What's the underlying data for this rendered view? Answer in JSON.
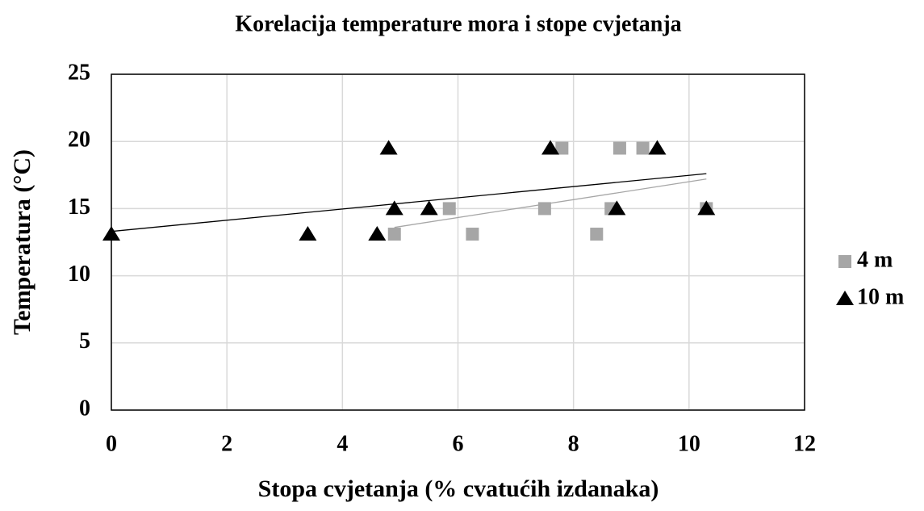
{
  "chart_data": {
    "type": "scatter",
    "title": "Korelacija temperature mora i stope cvjetanja",
    "x_label": "Stopa cvjetanja (% cvatućih izdanaka)",
    "y_label": "Temperatura (°C)",
    "xlim": [
      0,
      12
    ],
    "xticks": [
      0,
      2,
      4,
      6,
      8,
      10,
      12
    ],
    "ylim": [
      0,
      25
    ],
    "yticks": [
      0,
      5,
      10,
      15,
      20,
      25
    ],
    "grid": true,
    "legend": "right",
    "series": [
      {
        "name": "4 m",
        "color": "#a6a6a6",
        "marker": "square",
        "x": [
          4.9,
          5.85,
          6.25,
          7.5,
          7.8,
          8.4,
          8.65,
          8.8,
          9.2,
          10.3
        ],
        "values": [
          13.1,
          15,
          13.1,
          15,
          19.5,
          13.1,
          15,
          19.5,
          19.5,
          15
        ],
        "trendline": {
          "color": "#a6a6a6",
          "x": [
            4.9,
            10.3
          ],
          "values": [
            13.6,
            17.2
          ]
        }
      },
      {
        "name": "10 m",
        "color": "#000000",
        "marker": "triangle",
        "x": [
          0,
          3.4,
          4.6,
          4.8,
          4.9,
          5.5,
          7.6,
          8.75,
          9.45,
          10.3
        ],
        "values": [
          13.1,
          13.1,
          13.1,
          19.5,
          15,
          15,
          19.5,
          15,
          19.5,
          15
        ],
        "trendline": {
          "color": "#000000",
          "x": [
            0,
            10.3
          ],
          "values": [
            13.3,
            17.6
          ]
        }
      }
    ]
  }
}
